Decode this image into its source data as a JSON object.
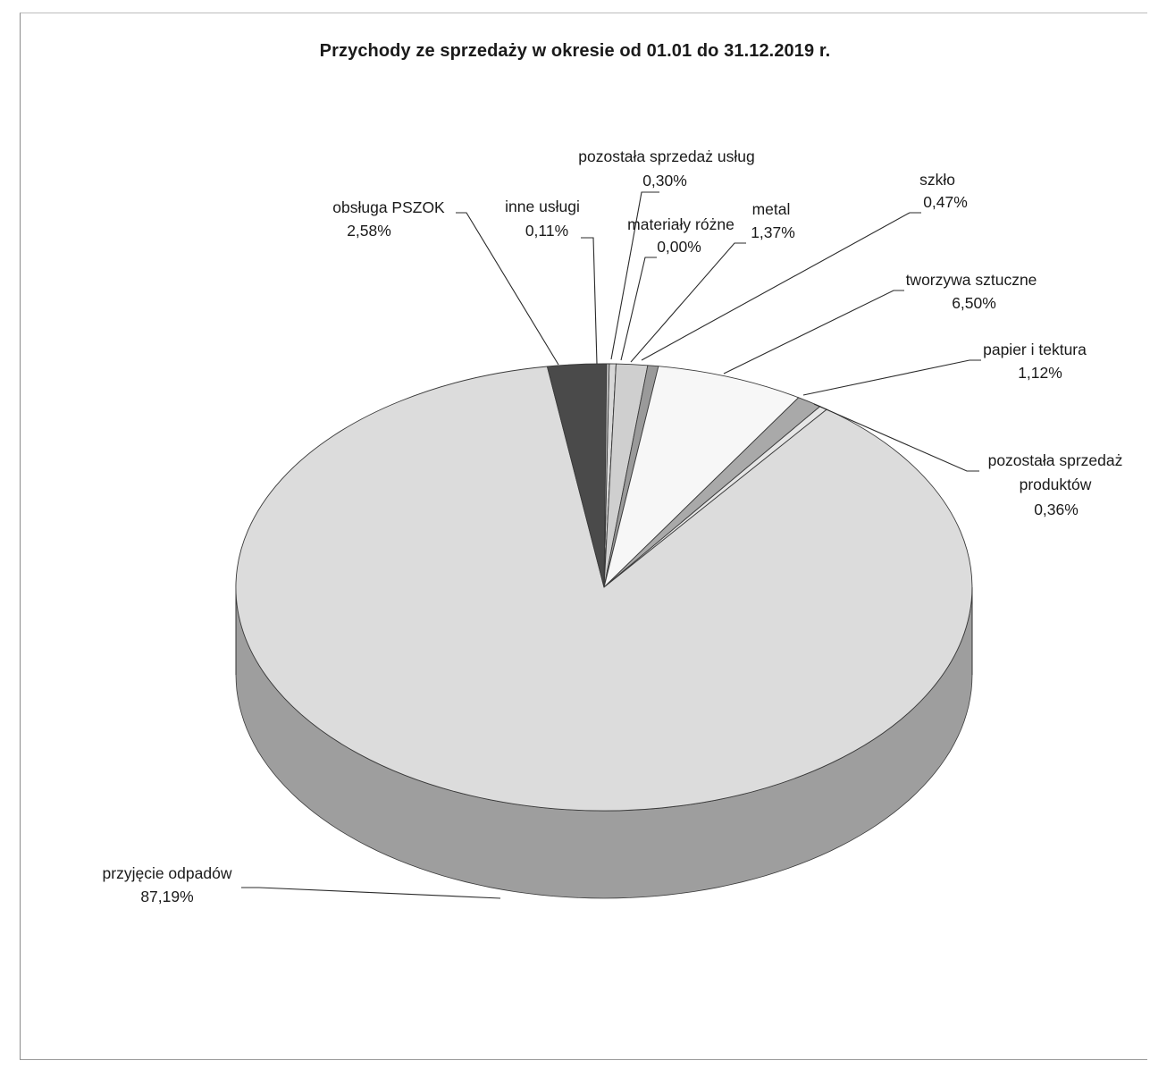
{
  "chart_data": {
    "type": "pie",
    "title": "Przychody ze sprzedaży w okresie od 01.01 do 31.12.2019 r.",
    "three_d": true,
    "legend": "none",
    "slices": [
      {
        "label": "pozostała sprzedaż usług",
        "value": 0.3,
        "value_label": "0,30%",
        "color": "#d8d8d8"
      },
      {
        "label": "materiały różne",
        "value": 0.0,
        "value_label": "0,00%",
        "color": "#bfbfbf"
      },
      {
        "label": "metal",
        "value": 1.37,
        "value_label": "1,37%",
        "color": "#cfcfcf"
      },
      {
        "label": "szkło",
        "value": 0.47,
        "value_label": "0,47%",
        "color": "#9a9a9a"
      },
      {
        "label": "tworzywa sztuczne",
        "value": 6.5,
        "value_label": "6,50%",
        "color": "#f7f7f7"
      },
      {
        "label": "papier i tektura",
        "value": 1.12,
        "value_label": "1,12%",
        "color": "#a9a9a9"
      },
      {
        "label": "pozostała sprzedaż produktów",
        "value": 0.36,
        "value_label": "0,36%",
        "color": "#e6e6e6"
      },
      {
        "label": "przyjęcie odpadów",
        "value": 87.19,
        "value_label": "87,19%",
        "color": "#dcdcdc"
      },
      {
        "label": "obsługa PSZOK",
        "value": 2.58,
        "value_label": "2,58%",
        "color": "#4a4a4a"
      },
      {
        "label": "inne usługi",
        "value": 0.11,
        "value_label": "0,11%",
        "color": "#c4c4c4"
      }
    ]
  }
}
